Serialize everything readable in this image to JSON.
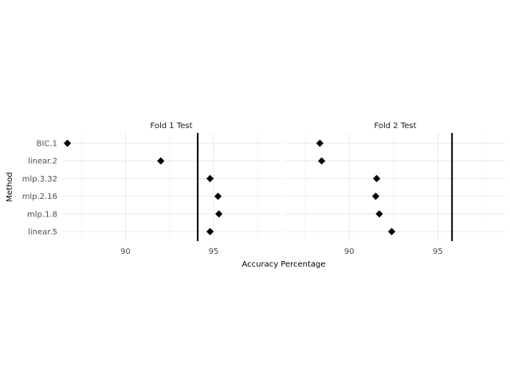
{
  "chart_data": {
    "type": "scatter",
    "xlabel": "Accuracy Percentage",
    "ylabel": "Method",
    "categories": [
      "BIC.1",
      "linear.2",
      "mlp.3.32",
      "mlp.2.16",
      "mlp.1.8",
      "linear.5"
    ],
    "xlim": [
      86.4,
      98.8
    ],
    "xticks": [
      90,
      95
    ],
    "grid": true,
    "legend": "none",
    "marker_color": "#000000",
    "facets": [
      {
        "title": "Fold 1 Test",
        "reference_line": 94.1,
        "points": [
          {
            "method": "BIC.1",
            "value": 86.7
          },
          {
            "method": "linear.2",
            "value": 92.0
          },
          {
            "method": "mlp.3.32",
            "value": 94.8
          },
          {
            "method": "mlp.2.16",
            "value": 95.25
          },
          {
            "method": "mlp.1.8",
            "value": 95.3
          },
          {
            "method": "linear.5",
            "value": 94.8
          }
        ]
      },
      {
        "title": "Fold 2 Test",
        "reference_line": 95.8,
        "points": [
          {
            "method": "BIC.1",
            "value": 88.35
          },
          {
            "method": "linear.2",
            "value": 88.45
          },
          {
            "method": "mlp.3.32",
            "value": 91.55
          },
          {
            "method": "mlp.2.16",
            "value": 91.5
          },
          {
            "method": "mlp.1.8",
            "value": 91.7
          },
          {
            "method": "linear.5",
            "value": 92.4
          }
        ]
      }
    ]
  }
}
